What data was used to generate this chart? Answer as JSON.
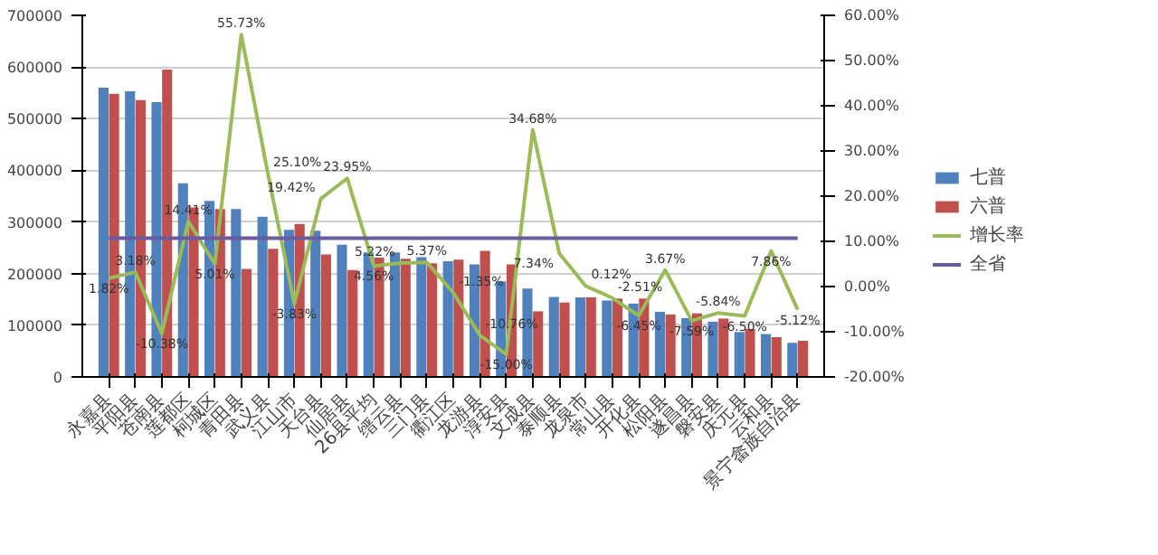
{
  "chart_data": {
    "type": "bar",
    "categories": [
      "永嘉县",
      "平阳县",
      "苍南县",
      "莲都区",
      "柯城区",
      "青田县",
      "武义县",
      "江山市",
      "天台县",
      "仙居县",
      "26县平均",
      "缙云县",
      "三门县",
      "衢江区",
      "龙游县",
      "淳安县",
      "文成县",
      "泰顺县",
      "龙泉市",
      "常山县",
      "开化县",
      "松阳县",
      "遂昌县",
      "磐安县",
      "庆元县",
      "云和县",
      "景宁畲族自治县"
    ],
    "series": [
      {
        "name": "七普",
        "color": "#4f81bd",
        "values": [
          560000,
          553000,
          532000,
          375000,
          341000,
          325000,
          310000,
          285000,
          283000,
          256000,
          241000,
          241000,
          232000,
          224000,
          218000,
          185000,
          171000,
          155000,
          154000,
          148000,
          142000,
          126000,
          114000,
          107000,
          87000,
          83000,
          66000
        ]
      },
      {
        "name": "六普",
        "color": "#c0504d",
        "values": [
          548000,
          536000,
          595000,
          328000,
          325000,
          209000,
          248000,
          296000,
          237000,
          207000,
          231000,
          229000,
          220000,
          227000,
          244000,
          218000,
          127000,
          144000,
          154000,
          152000,
          152000,
          121000,
          123000,
          113000,
          93000,
          77000,
          70000
        ]
      },
      {
        "name": "增长率",
        "color": "#9bbb59",
        "type": "line",
        "axis": "y2",
        "values": [
          1.82,
          3.18,
          -10.38,
          14.41,
          5.01,
          55.73,
          25.1,
          -3.83,
          19.42,
          23.95,
          4.56,
          5.22,
          5.37,
          -1.35,
          -10.76,
          -15.0,
          34.68,
          7.34,
          0.12,
          -2.51,
          -6.45,
          3.67,
          -7.59,
          -5.84,
          -6.5,
          7.86,
          -5.12
        ],
        "value_labels": [
          "1.82%",
          "3.18%",
          "-10.38%",
          "14.41%",
          "5.01%",
          "55.73%",
          "25.10%",
          "-3.83%",
          "19.42%",
          "23.95%",
          "4.56%",
          "5.22%",
          "5.37%",
          "-1.35%",
          "-10.76%",
          "-15.00%",
          "34.68%",
          "7.34%",
          "0.12%",
          "-2.51%",
          "-6.45%",
          "3.67%",
          "-7.59%",
          "-5.84%",
          "-6.50%",
          "7.86%",
          "-5.12%"
        ]
      },
      {
        "name": "全省",
        "color": "#6a5a9e",
        "type": "line",
        "axis": "y2",
        "values": [
          10.7,
          10.7,
          10.7,
          10.7,
          10.7,
          10.7,
          10.7,
          10.7,
          10.7,
          10.7,
          10.7,
          10.7,
          10.7,
          10.7,
          10.7,
          10.7,
          10.7,
          10.7,
          10.7,
          10.7,
          10.7,
          10.7,
          10.7,
          10.7,
          10.7,
          10.7,
          10.7
        ]
      }
    ],
    "ylim": [
      0,
      700000
    ],
    "yticks": [
      0,
      100000,
      200000,
      300000,
      400000,
      500000,
      600000,
      700000
    ],
    "y2lim": [
      -20,
      60
    ],
    "y2ticks": [
      {
        "value": -20,
        "label": "-20.00%"
      },
      {
        "value": -10,
        "label": "-10.00%"
      },
      {
        "value": 0,
        "label": "0.00%"
      },
      {
        "value": 10,
        "label": "10.00%"
      },
      {
        "value": 20,
        "label": "20.00%"
      },
      {
        "value": 30,
        "label": "30.00%"
      },
      {
        "value": 40,
        "label": "40.00%"
      },
      {
        "value": 50,
        "label": "50.00%"
      },
      {
        "value": 60,
        "label": "60.00%"
      }
    ],
    "grid": "y",
    "legend": "right"
  }
}
